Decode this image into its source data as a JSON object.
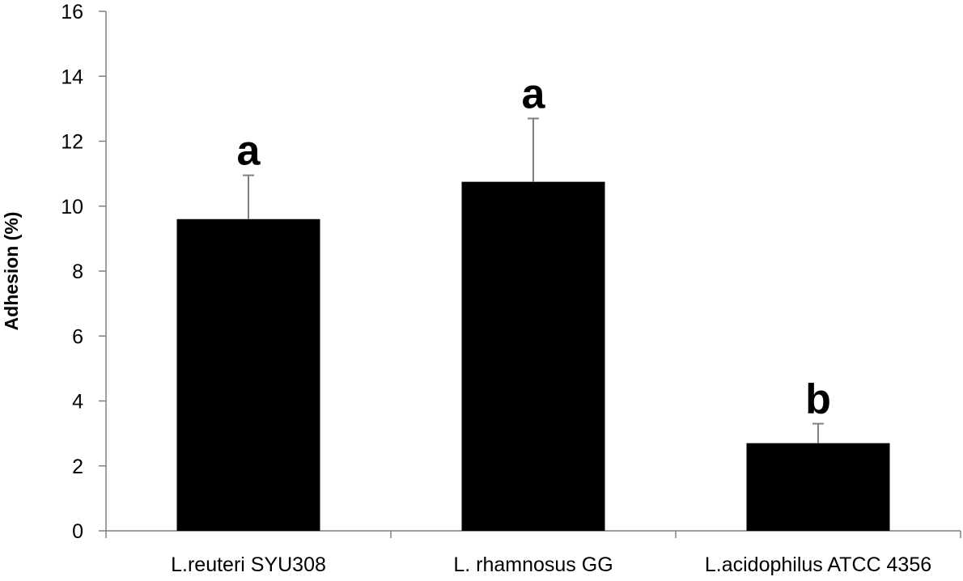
{
  "chart_data": {
    "type": "bar",
    "title": "",
    "xlabel": "",
    "ylabel": "Adhesion (%)",
    "ylim": [
      0,
      16
    ],
    "yticks": [
      0,
      2,
      4,
      6,
      8,
      10,
      12,
      14,
      16
    ],
    "categories": [
      "L.reuteri SYU308",
      "L. rhamnosus GG",
      "L.acidophilus ATCC 4356"
    ],
    "values": [
      9.6,
      10.75,
      2.7
    ],
    "errors": [
      1.35,
      1.95,
      0.6
    ],
    "significance": [
      "a",
      "a",
      "b"
    ],
    "bar_color": "#000000",
    "error_bar_color": "#7f7f7f",
    "grid": false,
    "legend": "none"
  }
}
